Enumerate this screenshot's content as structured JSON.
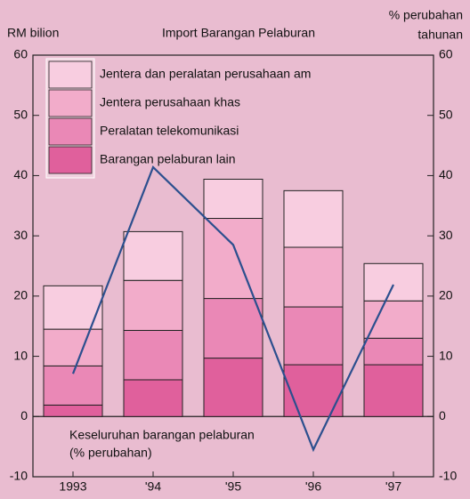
{
  "chart_data": {
    "type": "stacked_bar_line",
    "title": "Import Barangan Pelaburan",
    "y_label": "RM bilion",
    "y2_label": [
      "% perubahan",
      "tahunan"
    ],
    "annotation": [
      "Keseluruhan barangan pelaburan",
      "(% perubahan)"
    ],
    "categories": [
      "1993",
      "'94",
      "'95",
      "'96",
      "'97"
    ],
    "series": [
      {
        "name": "Barangan pelaburan lain",
        "color": "#e0609c",
        "values": [
          1.9,
          6.1,
          9.7,
          8.6,
          8.6
        ]
      },
      {
        "name": "Peralatan telekomunikasi",
        "color": "#ea88b6",
        "values": [
          6.5,
          8.2,
          9.9,
          9.6,
          4.4
        ]
      },
      {
        "name": "Jentera perusahaan khas",
        "color": "#f2acca",
        "values": [
          6.1,
          8.3,
          13.3,
          9.9,
          6.2
        ]
      },
      {
        "name": "Jentera dan peralatan perusahaan am",
        "color": "#f8cde0",
        "values": [
          7.2,
          8.1,
          6.5,
          9.4,
          6.2
        ]
      },
      {
        "type": "line",
        "axis": "y2",
        "color": "#2c4f8e",
        "values": [
          7.1,
          41.4,
          28.5,
          -5.5,
          21.9
        ]
      }
    ],
    "ylim": [
      -10,
      60
    ],
    "yticks": [
      -10,
      0,
      10,
      20,
      30,
      40,
      50,
      60
    ],
    "y2lim": [
      -10,
      60
    ],
    "y2ticks": [
      -10,
      0,
      10,
      20,
      30,
      40,
      50,
      60
    ]
  }
}
